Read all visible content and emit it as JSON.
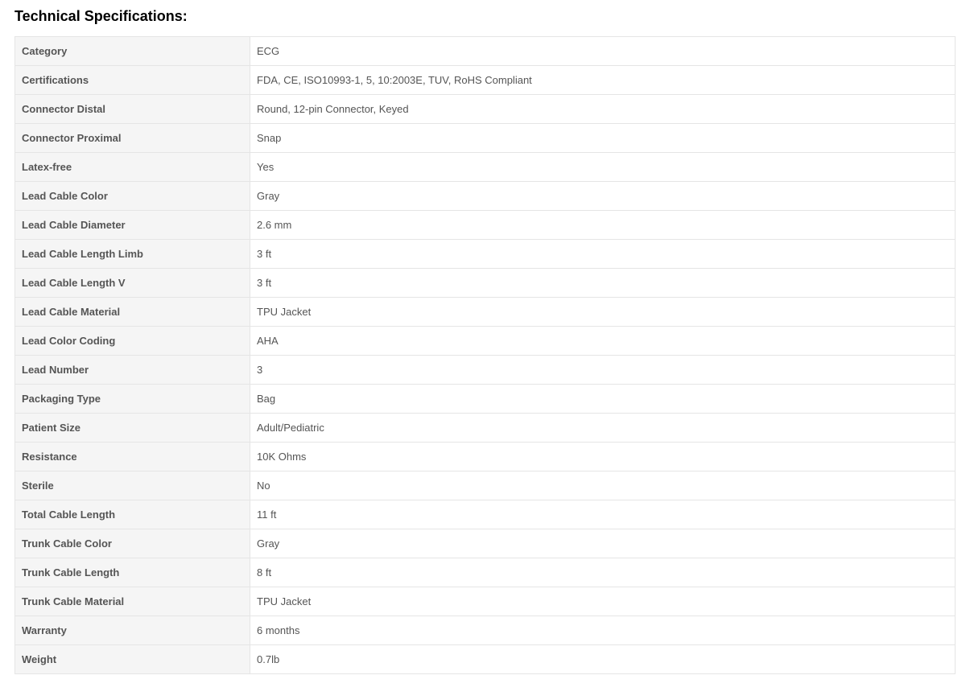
{
  "heading": "Technical Specifications:",
  "table": {
    "label_bg": "#f5f5f5",
    "value_bg": "#ffffff",
    "border_color": "#e5e5e5",
    "text_color": "#555555",
    "label_width_pct": 25,
    "font_size_pt": 13,
    "rows": [
      {
        "label": "Category",
        "value": "ECG"
      },
      {
        "label": "Certifications",
        "value": "FDA, CE, ISO10993-1, 5, 10:2003E, TUV, RoHS Compliant"
      },
      {
        "label": "Connector Distal",
        "value": "Round, 12-pin Connector, Keyed"
      },
      {
        "label": "Connector Proximal",
        "value": "Snap"
      },
      {
        "label": "Latex-free",
        "value": "Yes"
      },
      {
        "label": "Lead Cable Color",
        "value": "Gray"
      },
      {
        "label": "Lead Cable Diameter",
        "value": "2.6 mm"
      },
      {
        "label": "Lead Cable Length Limb",
        "value": "3 ft"
      },
      {
        "label": "Lead Cable Length V",
        "value": "3 ft"
      },
      {
        "label": "Lead Cable Material",
        "value": "TPU Jacket"
      },
      {
        "label": "Lead Color Coding",
        "value": "AHA"
      },
      {
        "label": "Lead Number",
        "value": "3"
      },
      {
        "label": "Packaging Type",
        "value": "Bag"
      },
      {
        "label": "Patient Size",
        "value": "Adult/Pediatric"
      },
      {
        "label": "Resistance",
        "value": "10K Ohms"
      },
      {
        "label": "Sterile",
        "value": "No"
      },
      {
        "label": "Total Cable Length",
        "value": "11 ft"
      },
      {
        "label": "Trunk Cable Color",
        "value": "Gray"
      },
      {
        "label": "Trunk Cable Length",
        "value": "8 ft"
      },
      {
        "label": "Trunk Cable Material",
        "value": "TPU Jacket"
      },
      {
        "label": "Warranty",
        "value": "6 months"
      },
      {
        "label": "Weight",
        "value": "0.7lb"
      }
    ]
  }
}
